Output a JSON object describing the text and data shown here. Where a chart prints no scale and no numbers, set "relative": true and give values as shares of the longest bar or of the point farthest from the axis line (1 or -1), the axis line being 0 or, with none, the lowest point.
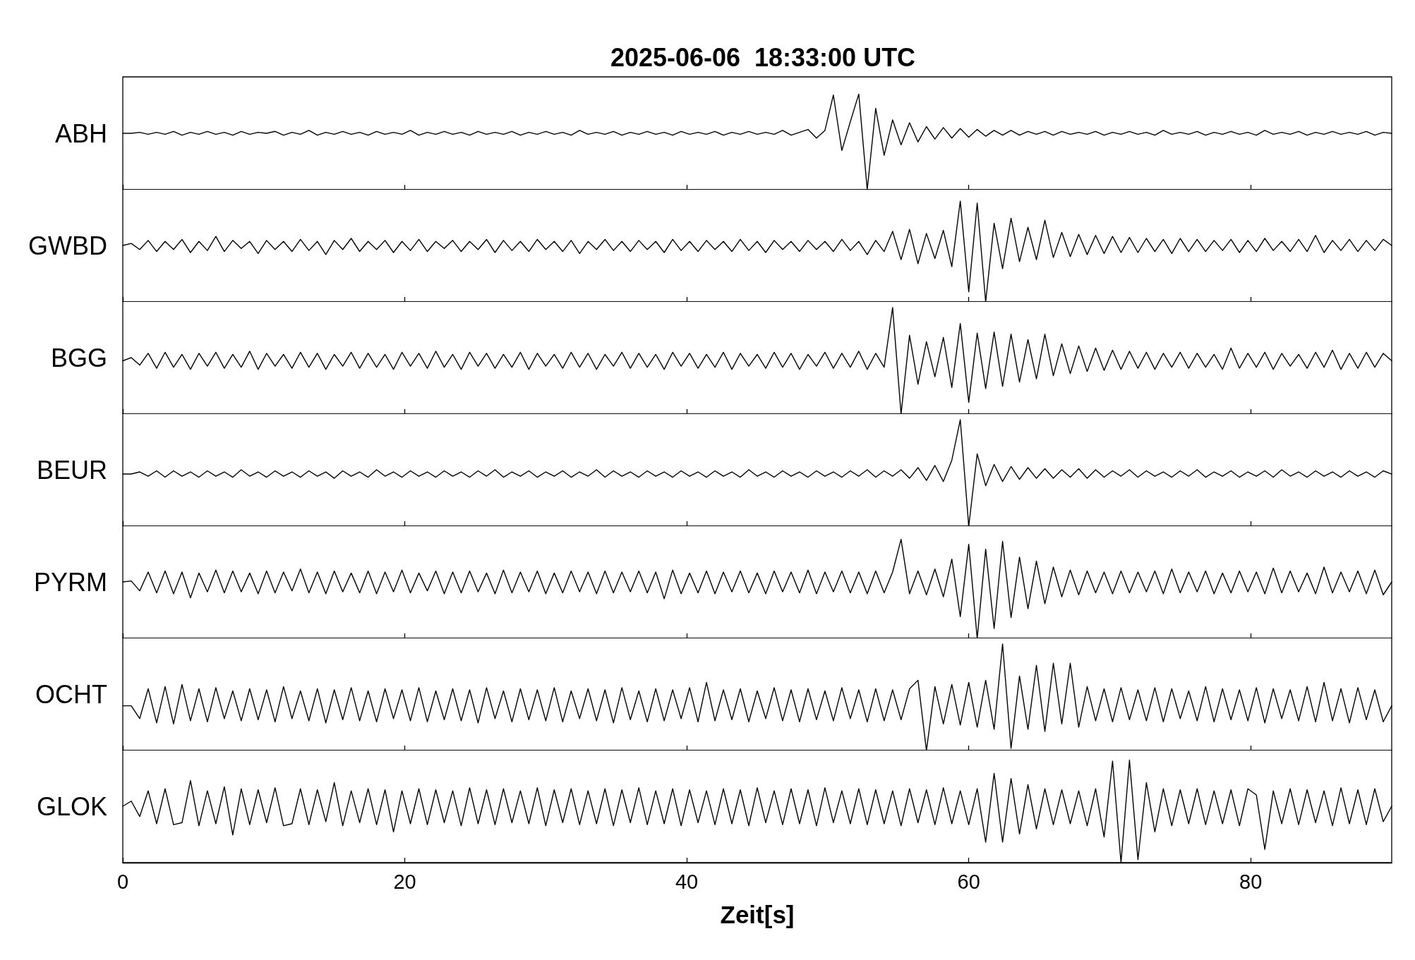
{
  "chart_data": [
    {
      "type": "line",
      "title": "2025-06-06  18:33:00 UTC",
      "ylabel": "ABH",
      "relative": true,
      "xlim": [
        0,
        90
      ],
      "xticks": [
        0,
        20,
        40,
        60,
        80
      ],
      "tick_labels": false,
      "line_style": "solid",
      "x": [
        0,
        0.6,
        1.2,
        1.8,
        2.4,
        3,
        3.6,
        4.2,
        4.8,
        5.4,
        6,
        6.6,
        7.2,
        7.8,
        8.4,
        9,
        9.6,
        10.2,
        10.8,
        11.4,
        12,
        12.6,
        13.2,
        13.8,
        14.4,
        15,
        15.6,
        16.2,
        16.8,
        17.4,
        18,
        18.6,
        19.2,
        19.8,
        20.4,
        21,
        21.6,
        22.2,
        22.8,
        23.4,
        24,
        24.6,
        25.2,
        25.8,
        26.4,
        27,
        27.6,
        28.2,
        28.8,
        29.4,
        30,
        30.6,
        31.2,
        31.8,
        32.4,
        33,
        33.6,
        34.2,
        34.8,
        35.4,
        36,
        36.6,
        37.2,
        37.8,
        38.4,
        39,
        39.6,
        40.2,
        40.8,
        41.4,
        42,
        42.6,
        43.2,
        43.8,
        44.4,
        45,
        45.6,
        46.2,
        46.8,
        47.4,
        48,
        48.6,
        49.2,
        49.8,
        50.4,
        51,
        51.6,
        52.2,
        52.8,
        53.4,
        54,
        54.6,
        55.2,
        55.8,
        56.4,
        57,
        57.6,
        58.2,
        58.8,
        59.4,
        60,
        60.6,
        61.2,
        61.8,
        62.4,
        63,
        63.6,
        64.2,
        64.8,
        65.4,
        66,
        66.6,
        67.2,
        67.8,
        68.4,
        69,
        69.6,
        70.2,
        70.8,
        71.4,
        72,
        72.6,
        73.2,
        73.8,
        74.4,
        75,
        75.6,
        76.2,
        76.8,
        77.4,
        78,
        78.6,
        79.2,
        79.8,
        80.4,
        81,
        81.6,
        82.2,
        82.8,
        83.4,
        84,
        84.6,
        85.2,
        85.8,
        86.4,
        87,
        87.6,
        88.2,
        88.8,
        89.4,
        90
      ],
      "series": [
        {
          "color": "#000000",
          "values": [
            0.59,
            0.59,
            0.6,
            0.58,
            0.6,
            0.58,
            0.61,
            0.57,
            0.6,
            0.58,
            0.61,
            0.58,
            0.6,
            0.57,
            0.61,
            0.58,
            0.6,
            0.59,
            0.61,
            0.57,
            0.6,
            0.58,
            0.62,
            0.57,
            0.6,
            0.58,
            0.61,
            0.58,
            0.6,
            0.57,
            0.61,
            0.58,
            0.6,
            0.58,
            0.62,
            0.57,
            0.6,
            0.58,
            0.61,
            0.58,
            0.6,
            0.57,
            0.61,
            0.58,
            0.6,
            0.58,
            0.61,
            0.57,
            0.6,
            0.58,
            0.61,
            0.58,
            0.6,
            0.57,
            0.62,
            0.58,
            0.6,
            0.58,
            0.61,
            0.57,
            0.6,
            0.58,
            0.61,
            0.58,
            0.6,
            0.57,
            0.61,
            0.58,
            0.6,
            0.58,
            0.61,
            0.57,
            0.6,
            0.58,
            0.61,
            0.58,
            0.6,
            0.58,
            0.62,
            0.57,
            0.6,
            0.63,
            0.54,
            0.62,
            0.99,
            0.41,
            0.71,
            1,
            0,
            0.85,
            0.36,
            0.73,
            0.47,
            0.7,
            0.5,
            0.66,
            0.53,
            0.65,
            0.54,
            0.64,
            0.55,
            0.63,
            0.56,
            0.62,
            0.57,
            0.62,
            0.57,
            0.61,
            0.58,
            0.61,
            0.57,
            0.61,
            0.58,
            0.6,
            0.58,
            0.61,
            0.57,
            0.6,
            0.58,
            0.61,
            0.58,
            0.6,
            0.57,
            0.62,
            0.58,
            0.6,
            0.58,
            0.61,
            0.57,
            0.6,
            0.58,
            0.61,
            0.58,
            0.6,
            0.57,
            0.62,
            0.58,
            0.6,
            0.58,
            0.61,
            0.57,
            0.6,
            0.58,
            0.61,
            0.58,
            0.6,
            0.58,
            0.61,
            0.57,
            0.6,
            0.59
          ]
        }
      ]
    },
    {
      "type": "line",
      "ylabel": "GWBD",
      "relative": true,
      "xlim": [
        0,
        90
      ],
      "xticks": [
        0,
        20,
        40,
        60,
        80
      ],
      "tick_labels": false,
      "line_style": "solid",
      "x": [
        0,
        0.6,
        1.2,
        1.8,
        2.4,
        3,
        3.6,
        4.2,
        4.8,
        5.4,
        6,
        6.6,
        7.2,
        7.8,
        8.4,
        9,
        9.6,
        10.2,
        10.8,
        11.4,
        12,
        12.6,
        13.2,
        13.8,
        14.4,
        15,
        15.6,
        16.2,
        16.8,
        17.4,
        18,
        18.6,
        19.2,
        19.8,
        20.4,
        21,
        21.6,
        22.2,
        22.8,
        23.4,
        24,
        24.6,
        25.2,
        25.8,
        26.4,
        27,
        27.6,
        28.2,
        28.8,
        29.4,
        30,
        30.6,
        31.2,
        31.8,
        32.4,
        33,
        33.6,
        34.2,
        34.8,
        35.4,
        36,
        36.6,
        37.2,
        37.8,
        38.4,
        39,
        39.6,
        40.2,
        40.8,
        41.4,
        42,
        42.6,
        43.2,
        43.8,
        44.4,
        45,
        45.6,
        46.2,
        46.8,
        47.4,
        48,
        48.6,
        49.2,
        49.8,
        50.4,
        51,
        51.6,
        52.2,
        52.8,
        53.4,
        54,
        54.6,
        55.2,
        55.8,
        56.4,
        57,
        57.6,
        58.2,
        58.8,
        59.4,
        60,
        60.6,
        61.2,
        61.8,
        62.4,
        63,
        63.6,
        64.2,
        64.8,
        65.4,
        66,
        66.6,
        67.2,
        67.8,
        68.4,
        69,
        69.6,
        70.2,
        70.8,
        71.4,
        72,
        72.6,
        73.2,
        73.8,
        74.4,
        75,
        75.6,
        76.2,
        76.8,
        77.4,
        78,
        78.6,
        79.2,
        79.8,
        80.4,
        81,
        81.6,
        82.2,
        82.8,
        83.4,
        84,
        84.6,
        85.2,
        85.8,
        86.4,
        87,
        87.6,
        88.2,
        88.8,
        89.4,
        90
      ],
      "series": [
        {
          "color": "#000000",
          "values": [
            0.56,
            0.58,
            0.52,
            0.61,
            0.5,
            0.6,
            0.52,
            0.62,
            0.49,
            0.6,
            0.51,
            0.65,
            0.5,
            0.61,
            0.53,
            0.6,
            0.48,
            0.61,
            0.52,
            0.6,
            0.5,
            0.62,
            0.51,
            0.6,
            0.47,
            0.61,
            0.52,
            0.63,
            0.5,
            0.6,
            0.52,
            0.61,
            0.49,
            0.6,
            0.51,
            0.62,
            0.5,
            0.6,
            0.53,
            0.61,
            0.5,
            0.6,
            0.52,
            0.62,
            0.49,
            0.61,
            0.51,
            0.6,
            0.5,
            0.62,
            0.52,
            0.6,
            0.5,
            0.61,
            0.48,
            0.6,
            0.52,
            0.62,
            0.51,
            0.6,
            0.5,
            0.61,
            0.52,
            0.6,
            0.49,
            0.62,
            0.51,
            0.6,
            0.5,
            0.61,
            0.52,
            0.6,
            0.5,
            0.62,
            0.51,
            0.6,
            0.49,
            0.61,
            0.52,
            0.6,
            0.5,
            0.61,
            0.52,
            0.6,
            0.5,
            0.62,
            0.51,
            0.6,
            0.47,
            0.61,
            0.5,
            0.7,
            0.42,
            0.72,
            0.38,
            0.68,
            0.43,
            0.71,
            0.35,
            1,
            0.1,
            0.98,
            0,
            0.78,
            0.33,
            0.83,
            0.4,
            0.74,
            0.42,
            0.81,
            0.44,
            0.69,
            0.45,
            0.67,
            0.47,
            0.66,
            0.48,
            0.65,
            0.49,
            0.64,
            0.49,
            0.63,
            0.5,
            0.62,
            0.48,
            0.63,
            0.5,
            0.62,
            0.5,
            0.61,
            0.51,
            0.62,
            0.49,
            0.61,
            0.5,
            0.63,
            0.51,
            0.6,
            0.5,
            0.62,
            0.5,
            0.66,
            0.49,
            0.61,
            0.51,
            0.62,
            0.5,
            0.61,
            0.51,
            0.62,
            0.56
          ]
        }
      ]
    },
    {
      "type": "line",
      "ylabel": "BGG",
      "relative": true,
      "xlim": [
        0,
        90
      ],
      "xticks": [
        0,
        20,
        40,
        60,
        80
      ],
      "tick_labels": false,
      "line_style": "solid",
      "x": [
        0,
        0.6,
        1.2,
        1.8,
        2.4,
        3,
        3.6,
        4.2,
        4.8,
        5.4,
        6,
        6.6,
        7.2,
        7.8,
        8.4,
        9,
        9.6,
        10.2,
        10.8,
        11.4,
        12,
        12.6,
        13.2,
        13.8,
        14.4,
        15,
        15.6,
        16.2,
        16.8,
        17.4,
        18,
        18.6,
        19.2,
        19.8,
        20.4,
        21,
        21.6,
        22.2,
        22.8,
        23.4,
        24,
        24.6,
        25.2,
        25.8,
        26.4,
        27,
        27.6,
        28.2,
        28.8,
        29.4,
        30,
        30.6,
        31.2,
        31.8,
        32.4,
        33,
        33.6,
        34.2,
        34.8,
        35.4,
        36,
        36.6,
        37.2,
        37.8,
        38.4,
        39,
        39.6,
        40.2,
        40.8,
        41.4,
        42,
        42.6,
        43.2,
        43.8,
        44.4,
        45,
        45.6,
        46.2,
        46.8,
        47.4,
        48,
        48.6,
        49.2,
        49.8,
        50.4,
        51,
        51.6,
        52.2,
        52.8,
        53.4,
        54,
        54.6,
        55.2,
        55.8,
        56.4,
        57,
        57.6,
        58.2,
        58.8,
        59.4,
        60,
        60.6,
        61.2,
        61.8,
        62.4,
        63,
        63.6,
        64.2,
        64.8,
        65.4,
        66,
        66.6,
        67.2,
        67.8,
        68.4,
        69,
        69.6,
        70.2,
        70.8,
        71.4,
        72,
        72.6,
        73.2,
        73.8,
        74.4,
        75,
        75.6,
        76.2,
        76.8,
        77.4,
        78,
        78.6,
        79.2,
        79.8,
        80.4,
        81,
        81.6,
        82.2,
        82.8,
        83.4,
        84,
        84.6,
        85.2,
        85.8,
        86.4,
        87,
        87.6,
        88.2,
        88.8,
        89.4,
        90
      ],
      "series": [
        {
          "color": "#000000",
          "values": [
            0.5,
            0.53,
            0.46,
            0.57,
            0.43,
            0.58,
            0.44,
            0.56,
            0.42,
            0.57,
            0.45,
            0.58,
            0.43,
            0.56,
            0.44,
            0.59,
            0.42,
            0.57,
            0.45,
            0.56,
            0.43,
            0.58,
            0.44,
            0.57,
            0.42,
            0.56,
            0.45,
            0.58,
            0.43,
            0.57,
            0.44,
            0.56,
            0.42,
            0.58,
            0.45,
            0.57,
            0.43,
            0.59,
            0.44,
            0.56,
            0.42,
            0.58,
            0.45,
            0.57,
            0.43,
            0.56,
            0.44,
            0.58,
            0.42,
            0.57,
            0.45,
            0.56,
            0.43,
            0.58,
            0.44,
            0.57,
            0.42,
            0.56,
            0.45,
            0.58,
            0.43,
            0.57,
            0.44,
            0.56,
            0.42,
            0.58,
            0.45,
            0.57,
            0.43,
            0.56,
            0.44,
            0.58,
            0.42,
            0.57,
            0.45,
            0.56,
            0.43,
            0.58,
            0.44,
            0.57,
            0.42,
            0.56,
            0.45,
            0.58,
            0.43,
            0.57,
            0.44,
            0.59,
            0.42,
            0.57,
            0.44,
            1,
            0,
            0.74,
            0.28,
            0.68,
            0.35,
            0.72,
            0.25,
            0.85,
            0.11,
            0.76,
            0.24,
            0.77,
            0.26,
            0.75,
            0.3,
            0.7,
            0.33,
            0.75,
            0.36,
            0.66,
            0.38,
            0.64,
            0.4,
            0.62,
            0.41,
            0.6,
            0.42,
            0.59,
            0.43,
            0.58,
            0.42,
            0.57,
            0.44,
            0.58,
            0.43,
            0.57,
            0.44,
            0.56,
            0.42,
            0.62,
            0.43,
            0.57,
            0.44,
            0.58,
            0.42,
            0.57,
            0.45,
            0.56,
            0.43,
            0.58,
            0.44,
            0.6,
            0.42,
            0.57,
            0.43,
            0.58,
            0.44,
            0.57,
            0.5
          ]
        }
      ]
    },
    {
      "type": "line",
      "ylabel": "BEUR",
      "relative": true,
      "xlim": [
        0,
        90
      ],
      "xticks": [
        0,
        20,
        40,
        60,
        80
      ],
      "tick_labels": false,
      "line_style": "solid",
      "x": [
        0,
        0.6,
        1.2,
        1.8,
        2.4,
        3,
        3.6,
        4.2,
        4.8,
        5.4,
        6,
        6.6,
        7.2,
        7.8,
        8.4,
        9,
        9.6,
        10.2,
        10.8,
        11.4,
        12,
        12.6,
        13.2,
        13.8,
        14.4,
        15,
        15.6,
        16.2,
        16.8,
        17.4,
        18,
        18.6,
        19.2,
        19.8,
        20.4,
        21,
        21.6,
        22.2,
        22.8,
        23.4,
        24,
        24.6,
        25.2,
        25.8,
        26.4,
        27,
        27.6,
        28.2,
        28.8,
        29.4,
        30,
        30.6,
        31.2,
        31.8,
        32.4,
        33,
        33.6,
        34.2,
        34.8,
        35.4,
        36,
        36.6,
        37.2,
        37.8,
        38.4,
        39,
        39.6,
        40.2,
        40.8,
        41.4,
        42,
        42.6,
        43.2,
        43.8,
        44.4,
        45,
        45.6,
        46.2,
        46.8,
        47.4,
        48,
        48.6,
        49.2,
        49.8,
        50.4,
        51,
        51.6,
        52.2,
        52.8,
        53.4,
        54,
        54.6,
        55.2,
        55.8,
        56.4,
        57,
        57.6,
        58.2,
        58.8,
        59.4,
        60,
        60.6,
        61.2,
        61.8,
        62.4,
        63,
        63.6,
        64.2,
        64.8,
        65.4,
        66,
        66.6,
        67.2,
        67.8,
        68.4,
        69,
        69.6,
        70.2,
        70.8,
        71.4,
        72,
        72.6,
        73.2,
        73.8,
        74.4,
        75,
        75.6,
        76.2,
        76.8,
        77.4,
        78,
        78.6,
        79.2,
        79.8,
        80.4,
        81,
        81.6,
        82.2,
        82.8,
        83.4,
        84,
        84.6,
        85.2,
        85.8,
        86.4,
        87,
        87.6,
        88.2,
        88.8,
        89.4,
        90
      ],
      "series": [
        {
          "color": "#000000",
          "values": [
            0.49,
            0.49,
            0.51,
            0.47,
            0.52,
            0.46,
            0.52,
            0.47,
            0.51,
            0.46,
            0.52,
            0.47,
            0.51,
            0.46,
            0.53,
            0.47,
            0.51,
            0.46,
            0.52,
            0.47,
            0.51,
            0.46,
            0.52,
            0.47,
            0.51,
            0.45,
            0.52,
            0.47,
            0.51,
            0.46,
            0.53,
            0.47,
            0.51,
            0.46,
            0.52,
            0.47,
            0.51,
            0.46,
            0.52,
            0.47,
            0.51,
            0.46,
            0.52,
            0.47,
            0.53,
            0.46,
            0.51,
            0.47,
            0.52,
            0.46,
            0.51,
            0.47,
            0.52,
            0.46,
            0.51,
            0.47,
            0.53,
            0.46,
            0.52,
            0.47,
            0.51,
            0.46,
            0.52,
            0.47,
            0.51,
            0.46,
            0.52,
            0.47,
            0.51,
            0.46,
            0.52,
            0.47,
            0.51,
            0.46,
            0.53,
            0.47,
            0.51,
            0.46,
            0.52,
            0.47,
            0.51,
            0.46,
            0.52,
            0.47,
            0.51,
            0.46,
            0.52,
            0.47,
            0.53,
            0.46,
            0.52,
            0.47,
            0.53,
            0.45,
            0.55,
            0.43,
            0.57,
            0.42,
            0.62,
            1,
            0,
            0.68,
            0.38,
            0.58,
            0.42,
            0.56,
            0.44,
            0.55,
            0.45,
            0.54,
            0.45,
            0.53,
            0.46,
            0.54,
            0.45,
            0.53,
            0.46,
            0.52,
            0.47,
            0.53,
            0.46,
            0.52,
            0.47,
            0.51,
            0.46,
            0.52,
            0.47,
            0.53,
            0.46,
            0.51,
            0.47,
            0.52,
            0.46,
            0.51,
            0.47,
            0.52,
            0.46,
            0.53,
            0.47,
            0.51,
            0.46,
            0.52,
            0.47,
            0.51,
            0.46,
            0.52,
            0.47,
            0.51,
            0.46,
            0.52,
            0.49
          ]
        }
      ]
    },
    {
      "type": "line",
      "ylabel": "PYRM",
      "relative": true,
      "xlim": [
        0,
        90
      ],
      "xticks": [
        0,
        20,
        40,
        60,
        80
      ],
      "tick_labels": false,
      "line_style": "solid",
      "x": [
        0,
        0.6,
        1.2,
        1.8,
        2.4,
        3,
        3.6,
        4.2,
        4.8,
        5.4,
        6,
        6.6,
        7.2,
        7.8,
        8.4,
        9,
        9.6,
        10.2,
        10.8,
        11.4,
        12,
        12.6,
        13.2,
        13.8,
        14.4,
        15,
        15.6,
        16.2,
        16.8,
        17.4,
        18,
        18.6,
        19.2,
        19.8,
        20.4,
        21,
        21.6,
        22.2,
        22.8,
        23.4,
        24,
        24.6,
        25.2,
        25.8,
        26.4,
        27,
        27.6,
        28.2,
        28.8,
        29.4,
        30,
        30.6,
        31.2,
        31.8,
        32.4,
        33,
        33.6,
        34.2,
        34.8,
        35.4,
        36,
        36.6,
        37.2,
        37.8,
        38.4,
        39,
        39.6,
        40.2,
        40.8,
        41.4,
        42,
        42.6,
        43.2,
        43.8,
        44.4,
        45,
        45.6,
        46.2,
        46.8,
        47.4,
        48,
        48.6,
        49.2,
        49.8,
        50.4,
        51,
        51.6,
        52.2,
        52.8,
        53.4,
        54,
        54.6,
        55.2,
        55.8,
        56.4,
        57,
        57.6,
        58.2,
        58.8,
        59.4,
        60,
        60.6,
        61.2,
        61.8,
        62.4,
        63,
        63.6,
        64.2,
        64.8,
        65.4,
        66,
        66.6,
        67.2,
        67.8,
        68.4,
        69,
        69.6,
        70.2,
        70.8,
        71.4,
        72,
        72.6,
        73.2,
        73.8,
        74.4,
        75,
        75.6,
        76.2,
        76.8,
        77.4,
        78,
        78.6,
        79.2,
        79.8,
        80.4,
        81,
        81.6,
        82.2,
        82.8,
        83.4,
        84,
        84.6,
        85.2,
        85.8,
        86.4,
        87,
        87.6,
        88.2,
        88.8,
        89.4,
        90
      ],
      "series": [
        {
          "color": "#000000",
          "values": [
            0.57,
            0.58,
            0.48,
            0.67,
            0.46,
            0.68,
            0.45,
            0.67,
            0.41,
            0.66,
            0.47,
            0.69,
            0.46,
            0.68,
            0.47,
            0.66,
            0.45,
            0.68,
            0.46,
            0.67,
            0.48,
            0.7,
            0.46,
            0.67,
            0.45,
            0.68,
            0.47,
            0.66,
            0.46,
            0.68,
            0.45,
            0.67,
            0.47,
            0.69,
            0.46,
            0.66,
            0.48,
            0.68,
            0.45,
            0.67,
            0.46,
            0.68,
            0.47,
            0.66,
            0.45,
            0.69,
            0.46,
            0.67,
            0.47,
            0.68,
            0.45,
            0.66,
            0.46,
            0.68,
            0.47,
            0.67,
            0.45,
            0.68,
            0.46,
            0.67,
            0.47,
            0.68,
            0.46,
            0.67,
            0.4,
            0.69,
            0.45,
            0.66,
            0.46,
            0.68,
            0.45,
            0.67,
            0.47,
            0.68,
            0.46,
            0.66,
            0.45,
            0.68,
            0.47,
            0.67,
            0.46,
            0.69,
            0.45,
            0.67,
            0.47,
            0.68,
            0.46,
            0.67,
            0.45,
            0.68,
            0.46,
            0.67,
            1,
            0.45,
            0.68,
            0.44,
            0.7,
            0.42,
            0.8,
            0.22,
            0.95,
            0,
            0.9,
            0.1,
            0.98,
            0.21,
            0.82,
            0.3,
            0.78,
            0.35,
            0.72,
            0.42,
            0.69,
            0.44,
            0.68,
            0.46,
            0.67,
            0.45,
            0.68,
            0.46,
            0.67,
            0.47,
            0.68,
            0.45,
            0.7,
            0.46,
            0.67,
            0.47,
            0.68,
            0.45,
            0.66,
            0.46,
            0.68,
            0.47,
            0.67,
            0.45,
            0.71,
            0.46,
            0.68,
            0.47,
            0.66,
            0.45,
            0.72,
            0.46,
            0.67,
            0.47,
            0.68,
            0.45,
            0.69,
            0.44,
            0.57
          ]
        }
      ]
    },
    {
      "type": "line",
      "ylabel": "OCHT",
      "relative": true,
      "xlim": [
        0,
        90
      ],
      "xticks": [
        0,
        20,
        40,
        60,
        80
      ],
      "tick_labels": false,
      "line_style": "solid",
      "x": [
        0,
        0.6,
        1.2,
        1.8,
        2.4,
        3,
        3.6,
        4.2,
        4.8,
        5.4,
        6,
        6.6,
        7.2,
        7.8,
        8.4,
        9,
        9.6,
        10.2,
        10.8,
        11.4,
        12,
        12.6,
        13.2,
        13.8,
        14.4,
        15,
        15.6,
        16.2,
        16.8,
        17.4,
        18,
        18.6,
        19.2,
        19.8,
        20.4,
        21,
        21.6,
        22.2,
        22.8,
        23.4,
        24,
        24.6,
        25.2,
        25.8,
        26.4,
        27,
        27.6,
        28.2,
        28.8,
        29.4,
        30,
        30.6,
        31.2,
        31.8,
        32.4,
        33,
        33.6,
        34.2,
        34.8,
        35.4,
        36,
        36.6,
        37.2,
        37.8,
        38.4,
        39,
        39.6,
        40.2,
        40.8,
        41.4,
        42,
        42.6,
        43.2,
        43.8,
        44.4,
        45,
        45.6,
        46.2,
        46.8,
        47.4,
        48,
        48.6,
        49.2,
        49.8,
        50.4,
        51,
        51.6,
        52.2,
        52.8,
        53.4,
        54,
        54.6,
        55.2,
        55.8,
        56.4,
        57,
        57.6,
        58.2,
        58.8,
        59.4,
        60,
        60.6,
        61.2,
        61.8,
        62.4,
        63,
        63.6,
        64.2,
        64.8,
        65.4,
        66,
        66.6,
        67.2,
        67.8,
        68.4,
        69,
        69.6,
        70.2,
        70.8,
        71.4,
        72,
        72.6,
        73.2,
        73.8,
        74.4,
        75,
        75.6,
        76.2,
        76.8,
        77.4,
        78,
        78.6,
        79.2,
        79.8,
        80.4,
        81,
        81.6,
        82.2,
        82.8,
        83.4,
        84,
        84.6,
        85.2,
        85.8,
        86.4,
        87,
        87.6,
        88.2,
        88.8,
        89.4,
        90
      ],
      "series": [
        {
          "color": "#000000",
          "values": [
            0.42,
            0.42,
            0.3,
            0.58,
            0.26,
            0.6,
            0.25,
            0.62,
            0.28,
            0.58,
            0.27,
            0.59,
            0.3,
            0.56,
            0.28,
            0.58,
            0.29,
            0.57,
            0.27,
            0.6,
            0.3,
            0.56,
            0.28,
            0.58,
            0.26,
            0.57,
            0.29,
            0.59,
            0.28,
            0.56,
            0.27,
            0.58,
            0.3,
            0.57,
            0.28,
            0.59,
            0.27,
            0.56,
            0.29,
            0.58,
            0.28,
            0.57,
            0.26,
            0.59,
            0.3,
            0.56,
            0.27,
            0.58,
            0.29,
            0.57,
            0.28,
            0.59,
            0.27,
            0.56,
            0.3,
            0.58,
            0.28,
            0.57,
            0.26,
            0.59,
            0.29,
            0.56,
            0.27,
            0.58,
            0.28,
            0.57,
            0.3,
            0.59,
            0.27,
            0.64,
            0.28,
            0.57,
            0.29,
            0.58,
            0.27,
            0.56,
            0.3,
            0.59,
            0.28,
            0.57,
            0.27,
            0.58,
            0.29,
            0.56,
            0.28,
            0.59,
            0.3,
            0.57,
            0.27,
            0.58,
            0.28,
            0.57,
            0.29,
            0.58,
            0.66,
            0,
            0.6,
            0.25,
            0.62,
            0.24,
            0.64,
            0.22,
            0.66,
            0.2,
            1,
            0.02,
            0.7,
            0.2,
            0.8,
            0.18,
            0.82,
            0.25,
            0.82,
            0.22,
            0.6,
            0.28,
            0.58,
            0.27,
            0.59,
            0.29,
            0.57,
            0.28,
            0.59,
            0.27,
            0.58,
            0.3,
            0.56,
            0.28,
            0.6,
            0.27,
            0.58,
            0.29,
            0.57,
            0.28,
            0.59,
            0.26,
            0.58,
            0.3,
            0.57,
            0.28,
            0.6,
            0.27,
            0.64,
            0.28,
            0.58,
            0.26,
            0.59,
            0.29,
            0.57,
            0.27,
            0.42
          ]
        }
      ]
    },
    {
      "type": "line",
      "ylabel": "GLOK",
      "xlabel": "Zeit[s]",
      "relative": true,
      "xlim": [
        0,
        90
      ],
      "xticks": [
        0,
        20,
        40,
        60,
        80
      ],
      "tick_labels": "x",
      "line_style": "solid",
      "x": [
        0,
        0.6,
        1.2,
        1.8,
        2.4,
        3,
        3.6,
        4.2,
        4.8,
        5.4,
        6,
        6.6,
        7.2,
        7.8,
        8.4,
        9,
        9.6,
        10.2,
        10.8,
        11.4,
        12,
        12.6,
        13.2,
        13.8,
        14.4,
        15,
        15.6,
        16.2,
        16.8,
        17.4,
        18,
        18.6,
        19.2,
        19.8,
        20.4,
        21,
        21.6,
        22.2,
        22.8,
        23.4,
        24,
        24.6,
        25.2,
        25.8,
        26.4,
        27,
        27.6,
        28.2,
        28.8,
        29.4,
        30,
        30.6,
        31.2,
        31.8,
        32.4,
        33,
        33.6,
        34.2,
        34.8,
        35.4,
        36,
        36.6,
        37.2,
        37.8,
        38.4,
        39,
        39.6,
        40.2,
        40.8,
        41.4,
        42,
        42.6,
        43.2,
        43.8,
        44.4,
        45,
        45.6,
        46.2,
        46.8,
        47.4,
        48,
        48.6,
        49.2,
        49.8,
        50.4,
        51,
        51.6,
        52.2,
        52.8,
        53.4,
        54,
        54.6,
        55.2,
        55.8,
        56.4,
        57,
        57.6,
        58.2,
        58.8,
        59.4,
        60,
        60.6,
        61.2,
        61.8,
        62.4,
        63,
        63.6,
        64.2,
        64.8,
        65.4,
        66,
        66.6,
        67.2,
        67.8,
        68.4,
        69,
        69.6,
        70.2,
        70.8,
        71.4,
        72,
        72.6,
        73.2,
        73.8,
        74.4,
        75,
        75.6,
        76.2,
        76.8,
        77.4,
        78,
        78.6,
        79.2,
        79.8,
        80.4,
        81,
        81.6,
        82.2,
        82.8,
        83.4,
        84,
        84.6,
        85.2,
        85.8,
        86.4,
        87,
        87.6,
        88.2,
        88.8,
        89.4,
        90
      ],
      "series": [
        {
          "color": "#000000",
          "values": [
            0.55,
            0.6,
            0.45,
            0.7,
            0.38,
            0.72,
            0.37,
            0.39,
            0.8,
            0.36,
            0.7,
            0.38,
            0.74,
            0.27,
            0.72,
            0.37,
            0.71,
            0.39,
            0.73,
            0.36,
            0.38,
            0.72,
            0.37,
            0.71,
            0.4,
            0.78,
            0.36,
            0.7,
            0.39,
            0.72,
            0.37,
            0.71,
            0.3,
            0.7,
            0.38,
            0.72,
            0.37,
            0.71,
            0.39,
            0.7,
            0.36,
            0.73,
            0.38,
            0.71,
            0.37,
            0.72,
            0.39,
            0.7,
            0.38,
            0.73,
            0.36,
            0.71,
            0.39,
            0.72,
            0.37,
            0.7,
            0.38,
            0.72,
            0.36,
            0.71,
            0.39,
            0.73,
            0.37,
            0.7,
            0.38,
            0.72,
            0.36,
            0.71,
            0.39,
            0.7,
            0.37,
            0.72,
            0.38,
            0.71,
            0.36,
            0.73,
            0.39,
            0.7,
            0.37,
            0.72,
            0.38,
            0.71,
            0.36,
            0.73,
            0.39,
            0.7,
            0.38,
            0.72,
            0.37,
            0.71,
            0.38,
            0.7,
            0.36,
            0.72,
            0.39,
            0.71,
            0.37,
            0.73,
            0.38,
            0.7,
            0.37,
            0.72,
            0.2,
            0.87,
            0.2,
            0.82,
            0.28,
            0.76,
            0.33,
            0.72,
            0.37,
            0.71,
            0.38,
            0.7,
            0.36,
            0.72,
            0.25,
            0.99,
            0,
            1,
            0.03,
            0.78,
            0.3,
            0.72,
            0.36,
            0.71,
            0.38,
            0.72,
            0.37,
            0.7,
            0.38,
            0.71,
            0.36,
            0.72,
            0.66,
            0.13,
            0.7,
            0.38,
            0.72,
            0.37,
            0.71,
            0.39,
            0.7,
            0.36,
            0.73,
            0.38,
            0.71,
            0.37,
            0.72,
            0.4,
            0.55
          ]
        }
      ]
    }
  ]
}
